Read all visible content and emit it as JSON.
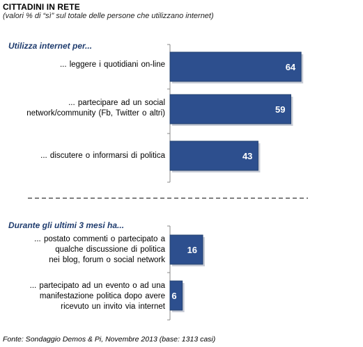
{
  "header": {
    "title": "CITTADINI IN RETE",
    "subtitle": "(valori % di “sì” sul totale delle persone che utilizzano internet)"
  },
  "source": "Fonte: Sondaggio Demos & Pi, Novembre 2013 (base: 1313 casi)",
  "colors": {
    "bar": "#2d4f8e",
    "bar_shadow": "#9aa3b4",
    "section_head": "#1f3c6e"
  },
  "chart_data": {
    "type": "bar",
    "orientation": "horizontal",
    "title": "CITTADINI IN RETE",
    "subtitle": "(valori % di “sì” sul totale delle persone che utilizzano internet)",
    "xlim": [
      0,
      100
    ],
    "groups": [
      {
        "heading": "Utilizza internet per...",
        "categories": [
          "... leggere i quotidiani on-line",
          "... partecipare ad un social network/community (Fb, Twitter o altri)",
          "... discutere o informarsi di politica"
        ],
        "values": [
          64,
          59,
          43
        ]
      },
      {
        "heading": "Durante gli ultimi 3 mesi ha...",
        "categories": [
          "... postato commenti o partecipato a qualche discussione di politica nei blog, forum o social network",
          "... partecipato ad un evento o ad una manifestazione politica dopo avere ricevuto un invito via internet"
        ],
        "values": [
          16,
          6
        ]
      }
    ],
    "data_labels": [
      "64",
      "59",
      "43",
      "16",
      "6"
    ]
  },
  "labels": {
    "g0_heading": "Utilizza internet per...",
    "g1_heading": "Durante gli ultimi 3 mesi ha...",
    "c0": [
      "... leggere i quotidiani on-line"
    ],
    "c1": [
      "... partecipare ad un social",
      "network/community (Fb, Twitter o altri)"
    ],
    "c2": [
      "... discutere o informarsi di politica"
    ],
    "c3": [
      "... postato commenti o partecipato a",
      "qualche discussione di politica",
      "nei blog, forum o social network"
    ],
    "c4": [
      "... partecipato ad un evento o ad una",
      "manifestazione politica dopo avere",
      "ricevuto un invito via internet"
    ]
  }
}
